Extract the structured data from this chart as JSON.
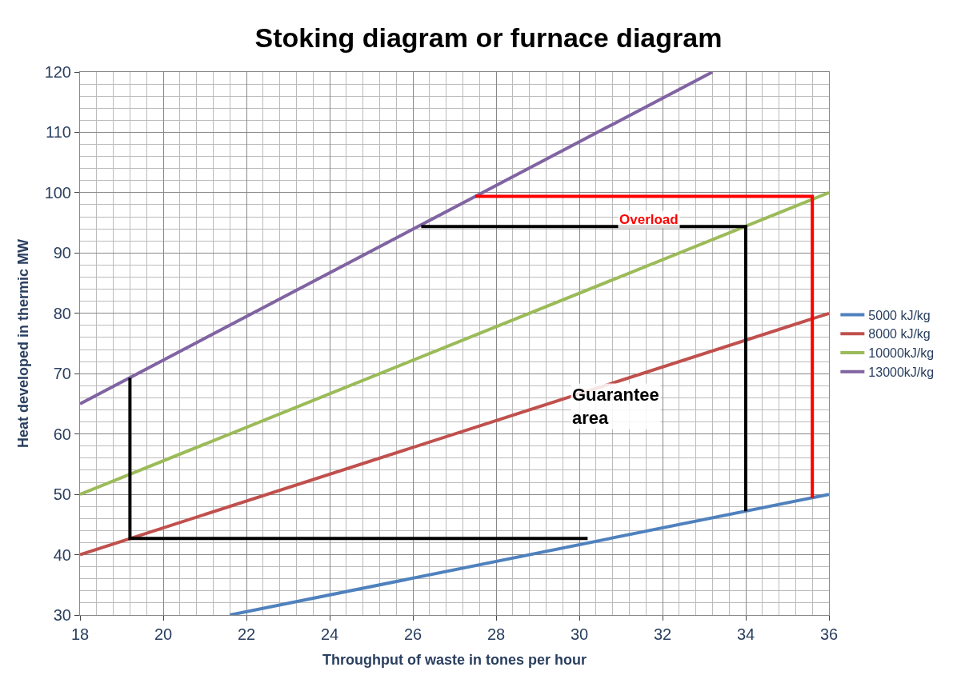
{
  "chart_data": {
    "type": "line",
    "title": "Stoking diagram or furnace diagram",
    "xlabel": "Throughput of waste in tones per hour",
    "ylabel": "Heat developed in thermic MW",
    "xlim": [
      18,
      36
    ],
    "xticks": [
      18,
      20,
      22,
      24,
      26,
      28,
      30,
      32,
      34,
      36
    ],
    "ylim": [
      30,
      120
    ],
    "yticks": [
      30,
      40,
      50,
      60,
      70,
      80,
      90,
      100,
      110,
      120
    ],
    "grid": true,
    "legend": "right",
    "marker": "none",
    "line_style": "solid",
    "series": [
      {
        "name": "5000 kJ/kg",
        "color": "#4f81bd",
        "x": [
          21.6,
          36
        ],
        "values": [
          30,
          50
        ]
      },
      {
        "name": "8000 kJ/kg",
        "color": "#c0504d",
        "x": [
          18,
          36
        ],
        "values": [
          40,
          80
        ]
      },
      {
        "name": "10000kJ/kg",
        "color": "#9bbb59",
        "x": [
          18,
          36
        ],
        "values": [
          50,
          100
        ]
      },
      {
        "name": "13000kJ/kg",
        "color": "#8064a2",
        "x": [
          18,
          33.2
        ],
        "values": [
          65,
          120
        ]
      },
      {
        "color": "#000000",
        "x": [
          19.2,
          19.2,
          30.2
        ],
        "values": [
          69.3,
          42.7,
          42.7
        ]
      },
      {
        "color": "#000000",
        "x": [
          26.2,
          34,
          34
        ],
        "values": [
          94.4,
          94.4,
          47.2
        ]
      },
      {
        "color": "#ff0000",
        "x": [
          27.5,
          35.6,
          35.6
        ],
        "values": [
          99.4,
          99.4,
          49.4
        ]
      }
    ],
    "annotations": [
      "Overload",
      "Guarantee area"
    ]
  }
}
